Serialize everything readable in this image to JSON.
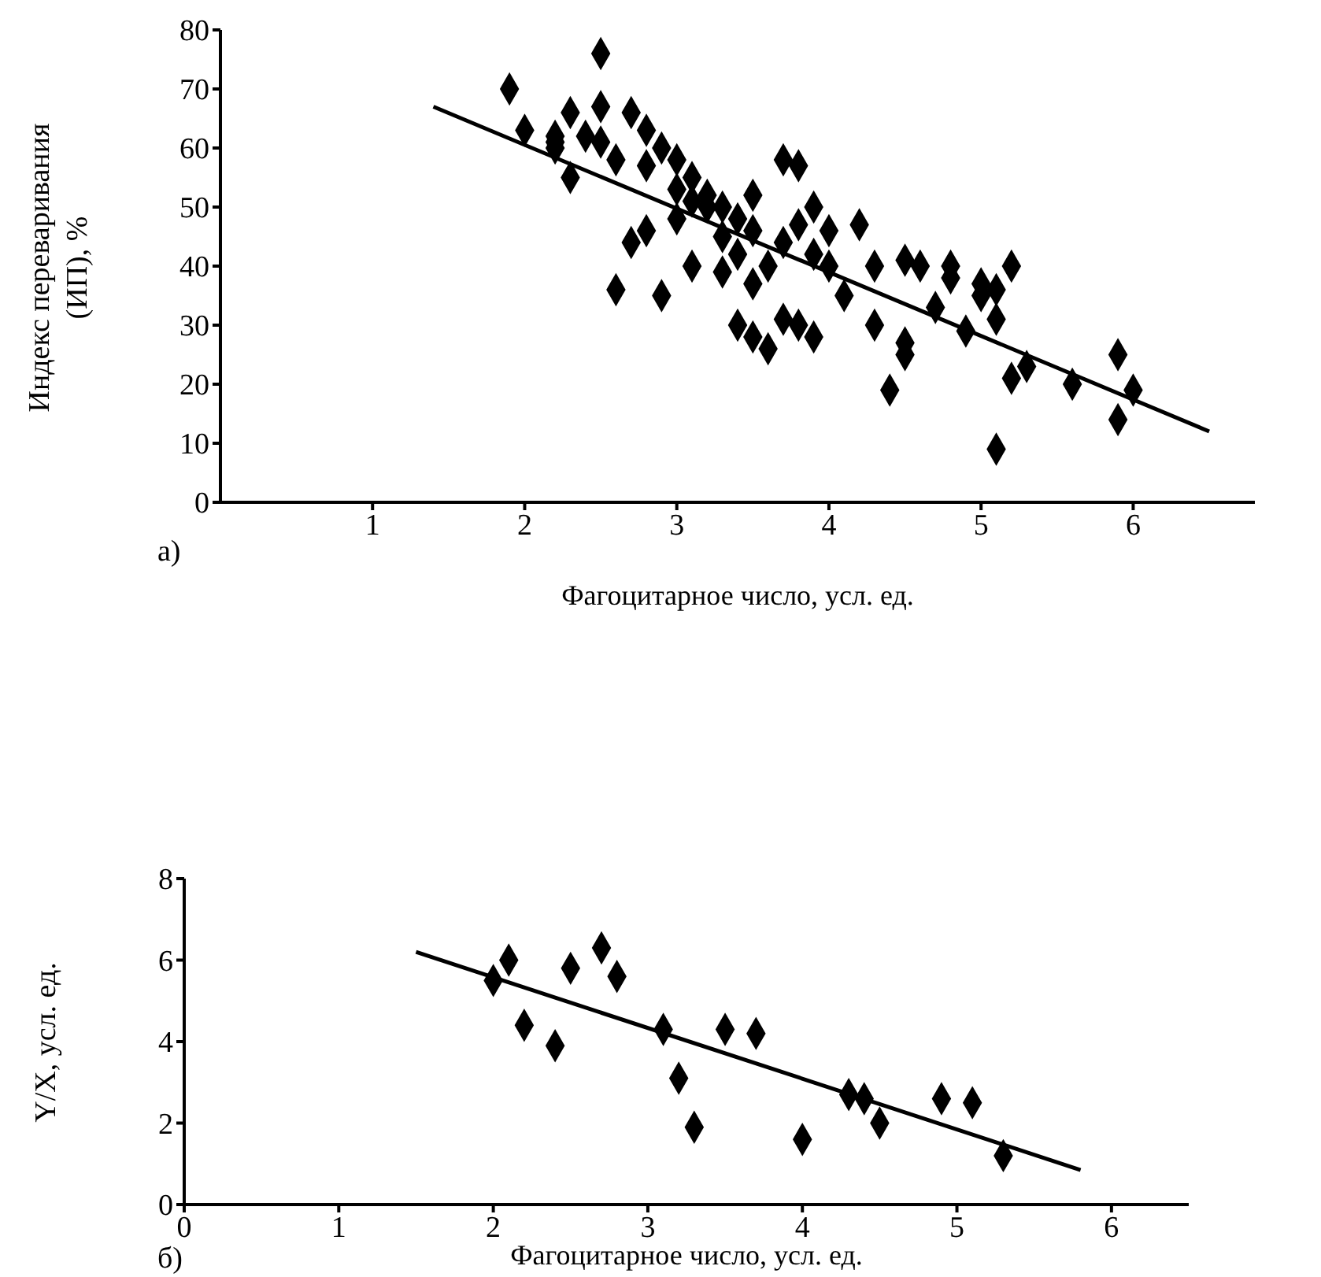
{
  "chart_data": [
    {
      "type": "scatter",
      "xlabel": "Фагоцитарное число, усл. ед.",
      "ylabel": "Индекс переваривания (ИП), %",
      "annotations": [
        "а)"
      ],
      "xlim": [
        0,
        6.8
      ],
      "xticks": [
        1,
        2,
        3,
        4,
        5,
        6
      ],
      "ylim": [
        0,
        80
      ],
      "yticks": [
        0,
        10,
        20,
        30,
        40,
        50,
        60,
        70,
        80
      ],
      "series": [
        {
          "marker": "diamond",
          "color": "#000000",
          "x": [
            1.9,
            2.0,
            2.2,
            2.2,
            2.3,
            2.3,
            2.5,
            2.5,
            2.5,
            2.6,
            2.6,
            2.7,
            2.7,
            2.8,
            2.8,
            2.8,
            2.9,
            2.9,
            3.0,
            3.0,
            3.0,
            3.1,
            3.1,
            3.1,
            3.2,
            3.2,
            3.3,
            3.3,
            3.4,
            3.4,
            3.5,
            3.5,
            3.5,
            3.5,
            3.6,
            3.6,
            3.7,
            3.7,
            3.7,
            3.8,
            3.8,
            3.8,
            3.9,
            3.9,
            3.9,
            4.0,
            4.0,
            4.1,
            4.2,
            4.3,
            4.3,
            4.4,
            4.5,
            4.5,
            4.5,
            4.6,
            4.7,
            4.8,
            4.8,
            4.9,
            5.0,
            5.0,
            5.1,
            5.1,
            5.1,
            5.2,
            5.2,
            5.3,
            5.6,
            5.9,
            5.9,
            6.0,
            3.3,
            3.4,
            2.4,
            2.2
          ],
          "values": [
            70,
            63,
            61,
            60,
            66,
            55,
            76,
            67,
            61,
            58,
            36,
            66,
            44,
            63,
            57,
            46,
            60,
            35,
            58,
            53,
            48,
            55,
            51,
            40,
            52,
            50,
            45,
            39,
            42,
            30,
            52,
            46,
            37,
            28,
            40,
            26,
            58,
            44,
            31,
            57,
            47,
            30,
            50,
            42,
            28,
            46,
            40,
            35,
            47,
            40,
            30,
            19,
            41,
            27,
            25,
            40,
            33,
            40,
            38,
            29,
            37,
            35,
            36,
            31,
            9,
            40,
            21,
            23,
            20,
            25,
            14,
            19,
            50,
            48,
            62,
            62
          ]
        },
        {
          "type": "line",
          "marker": "none",
          "color": "#000000",
          "x": [
            1.4,
            6.5
          ],
          "values": [
            67,
            12
          ]
        }
      ]
    },
    {
      "type": "scatter",
      "xlabel": "Фагоцитарное число, усл. ед.",
      "ylabel": "Y/X, усл. ед.",
      "annotations": [
        "б)"
      ],
      "xlim": [
        0,
        6.5
      ],
      "xticks": [
        0,
        1,
        2,
        3,
        4,
        5,
        6
      ],
      "ylim": [
        0,
        8
      ],
      "yticks": [
        0,
        2,
        4,
        6,
        8
      ],
      "series": [
        {
          "marker": "diamond",
          "color": "#000000",
          "x": [
            2.0,
            2.1,
            2.2,
            2.4,
            2.5,
            2.7,
            2.8,
            3.1,
            3.2,
            3.3,
            3.5,
            3.7,
            4.0,
            4.3,
            4.4,
            4.5,
            4.9,
            5.1,
            5.3
          ],
          "values": [
            5.5,
            6.0,
            4.4,
            3.9,
            5.8,
            6.3,
            5.6,
            4.3,
            3.1,
            1.9,
            4.3,
            4.2,
            1.6,
            2.7,
            2.6,
            2.0,
            2.6,
            2.5,
            1.2
          ]
        },
        {
          "type": "line",
          "marker": "none",
          "color": "#000000",
          "x": [
            1.5,
            5.8
          ],
          "values": [
            6.2,
            0.85
          ]
        }
      ]
    }
  ]
}
